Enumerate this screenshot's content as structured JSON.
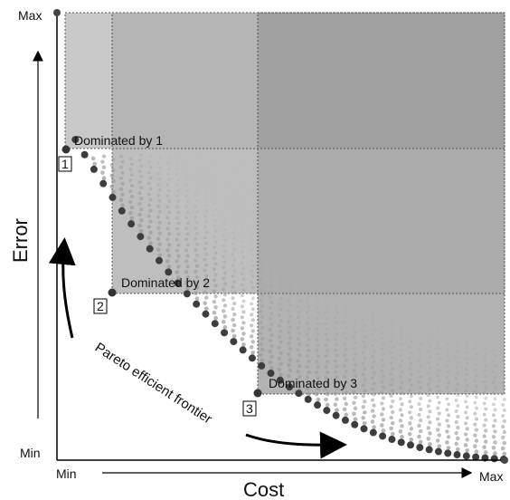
{
  "axes": {
    "y_label": "Error",
    "x_label": "Cost",
    "y_max": "Max",
    "y_min": "Min",
    "x_min": "Min",
    "x_max": "Max"
  },
  "regions": [
    {
      "label": "Dominated by 1",
      "fill": "#c9c9c9"
    },
    {
      "label": "Dominated by 2",
      "fill": "#a9a9a9"
    },
    {
      "label": "Dominated by 3",
      "fill": "#8f8f8f"
    }
  ],
  "points": [
    {
      "marker": "1"
    },
    {
      "marker": "2"
    },
    {
      "marker": "3"
    }
  ],
  "frontier_label": "Pareto efficient frontier",
  "colors": {
    "frontier_dot": "#3d3d3d",
    "cloud_dot": "#9a9a9a",
    "axis": "#000000"
  }
}
